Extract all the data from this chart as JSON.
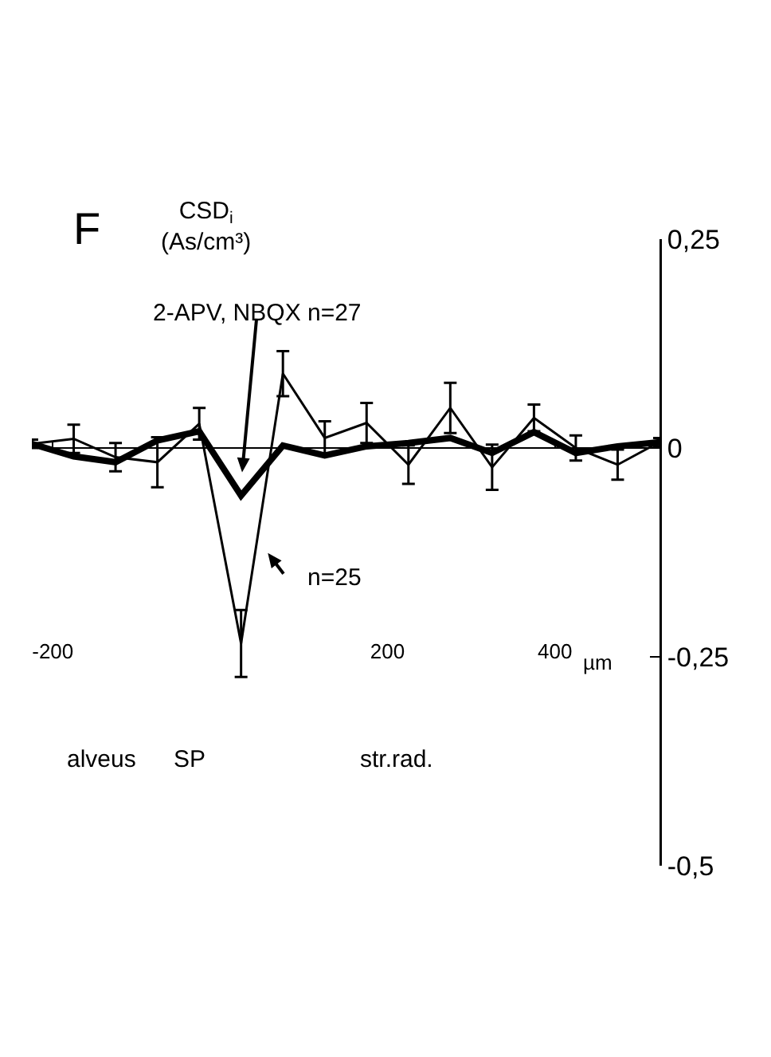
{
  "chart_data": {
    "type": "line",
    "title": "F",
    "xlabel": "µm",
    "ylabel": "CSD$_{i}$\n(As/cm³)",
    "x": [
      -225,
      -175,
      -125,
      -75,
      -25,
      25,
      75,
      125,
      175,
      225,
      275,
      325,
      375,
      425,
      475,
      525
    ],
    "series": [
      {
        "color": "#000000",
        "values": [
          0.005,
          0.011,
          -0.011,
          -0.017,
          0.029,
          -0.234,
          0.089,
          0.012,
          0.03,
          -0.02,
          0.048,
          -0.023,
          0.036,
          0,
          -0.02,
          0.007
        ],
        "errors": [
          0.005,
          0.017,
          0.017,
          0.03,
          0.019,
          0.04,
          0.027,
          0.02,
          0.024,
          0.023,
          0.03,
          0.027,
          0.016,
          0.015,
          0.018,
          0.005
        ]
      },
      {
        "color": "#000000",
        "values": [
          0.005,
          -0.01,
          -0.017,
          0.009,
          0.02,
          -0.057,
          0.003,
          -0.009,
          0.002,
          0.006,
          0.012,
          -0.006,
          0.019,
          -0.006,
          0.002,
          0.007
        ]
      }
    ],
    "xlim": [
      -225,
      525
    ],
    "xticks": [
      -200,
      200,
      400
    ],
    "ylim": [
      -0.5,
      0.25
    ],
    "yticks": [
      {
        "value": 0.25,
        "label": "0,25"
      },
      0,
      {
        "value": -0.25,
        "label": "-0,25"
      },
      {
        "value": -0.5,
        "label": "-0,5"
      }
    ],
    "annotations": [
      "alveus",
      "SP",
      "str.rad.",
      "2-APV, NBQX n=27",
      "n=25"
    ],
    "ref_lines": [
      {
        "axis": "y",
        "value": 0
      }
    ],
    "grid": false,
    "marker": "none",
    "line_style": "solid"
  }
}
